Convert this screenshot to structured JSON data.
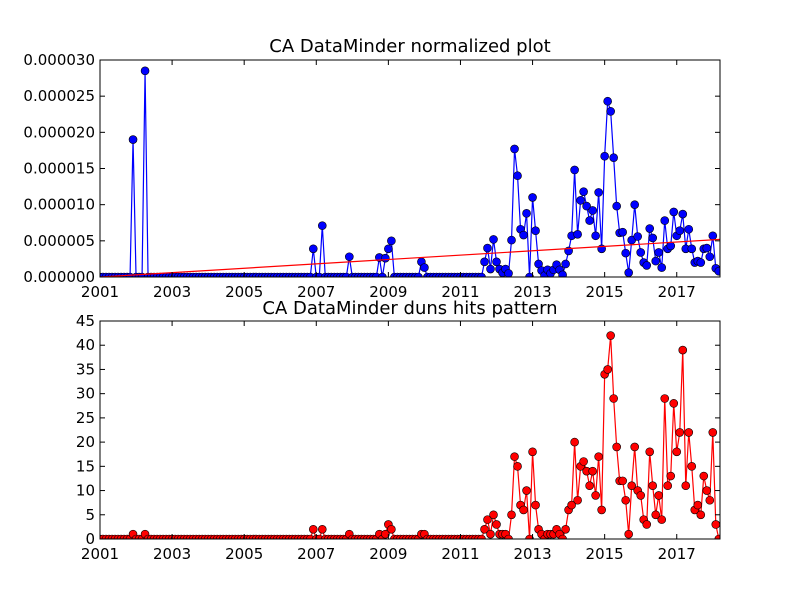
{
  "chart_data": [
    {
      "type": "line",
      "title": "CA DataMinder normalized plot",
      "xlim": [
        2001.0,
        2018.2
      ],
      "ylim": [
        0,
        3e-05
      ],
      "xticks": [
        2001,
        2003,
        2005,
        2007,
        2009,
        2011,
        2013,
        2015,
        2017
      ],
      "xtick_labels": [
        "2001",
        "2003",
        "2005",
        "2007",
        "2009",
        "2011",
        "2013",
        "2015",
        "2017"
      ],
      "yticks": [
        0,
        5e-06,
        1e-05,
        1.5e-05,
        2e-05,
        2.5e-05,
        3e-05
      ],
      "ytick_labels": [
        "0.000000",
        "0.000005",
        "0.000010",
        "0.000015",
        "0.000020",
        "0.000025",
        "0.000030"
      ],
      "grid": false,
      "series": [
        {
          "color": "#0000ff",
          "marker": "circle",
          "x_range": [
            2001.0,
            2018.2
          ],
          "interval": 0.0833,
          "baseline": 0,
          "points": [
            [
              2001.92,
              1.9e-05
            ],
            [
              2002.25,
              2.85e-05
            ],
            [
              2006.92,
              3.9e-06
            ],
            [
              2007.17,
              7.1e-06
            ],
            [
              2007.92,
              2.8e-06
            ],
            [
              2008.75,
              2.7e-06
            ],
            [
              2008.92,
              2.6e-06
            ],
            [
              2009.0,
              3.9e-06
            ],
            [
              2009.08,
              5e-06
            ],
            [
              2009.92,
              2.1e-06
            ],
            [
              2010.0,
              1.3e-06
            ],
            [
              2011.67,
              2.1e-06
            ],
            [
              2011.75,
              4e-06
            ],
            [
              2011.83,
              1.1e-06
            ],
            [
              2011.92,
              5.2e-06
            ],
            [
              2012.0,
              2.1e-06
            ],
            [
              2012.08,
              1.1e-06
            ],
            [
              2012.17,
              6e-07
            ],
            [
              2012.25,
              1.1e-06
            ],
            [
              2012.33,
              5e-07
            ],
            [
              2012.42,
              5.1e-06
            ],
            [
              2012.5,
              1.77e-05
            ],
            [
              2012.58,
              1.4e-05
            ],
            [
              2012.67,
              6.6e-06
            ],
            [
              2012.75,
              5.8e-06
            ],
            [
              2012.83,
              8.8e-06
            ],
            [
              2012.92,
              0.0
            ],
            [
              2013.0,
              1.1e-05
            ],
            [
              2013.08,
              6.4e-06
            ],
            [
              2013.17,
              1.8e-06
            ],
            [
              2013.25,
              9e-07
            ],
            [
              2013.33,
              2e-07
            ],
            [
              2013.42,
              1e-06
            ],
            [
              2013.5,
              5e-07
            ],
            [
              2013.58,
              1e-06
            ],
            [
              2013.67,
              1.7e-06
            ],
            [
              2013.75,
              1e-06
            ],
            [
              2013.83,
              3e-07
            ],
            [
              2013.92,
              1.8e-06
            ],
            [
              2014.0,
              3.6e-06
            ],
            [
              2014.08,
              5.7e-06
            ],
            [
              2014.17,
              1.48e-05
            ],
            [
              2014.25,
              5.9e-06
            ],
            [
              2014.33,
              1.06e-05
            ],
            [
              2014.42,
              1.18e-05
            ],
            [
              2014.5,
              9.8e-06
            ],
            [
              2014.58,
              7.8e-06
            ],
            [
              2014.67,
              9.2e-06
            ],
            [
              2014.75,
              5.7e-06
            ],
            [
              2014.83,
              1.17e-05
            ],
            [
              2014.92,
              3.9e-06
            ],
            [
              2015.0,
              1.67e-05
            ],
            [
              2015.08,
              2.43e-05
            ],
            [
              2015.17,
              2.29e-05
            ],
            [
              2015.25,
              1.65e-05
            ],
            [
              2015.33,
              9.8e-06
            ],
            [
              2015.42,
              6.1e-06
            ],
            [
              2015.5,
              6.2e-06
            ],
            [
              2015.58,
              3.3e-06
            ],
            [
              2015.67,
              6e-07
            ],
            [
              2015.75,
              5.1e-06
            ],
            [
              2015.83,
              1e-05
            ],
            [
              2015.92,
              5.6e-06
            ],
            [
              2016.0,
              3.4e-06
            ],
            [
              2016.08,
              2e-06
            ],
            [
              2016.17,
              1.6e-06
            ],
            [
              2016.25,
              6.7e-06
            ],
            [
              2016.33,
              5.4e-06
            ],
            [
              2016.42,
              2.2e-06
            ],
            [
              2016.5,
              3.4e-06
            ],
            [
              2016.58,
              1.3e-06
            ],
            [
              2016.67,
              7.8e-06
            ],
            [
              2016.75,
              3.9e-06
            ],
            [
              2016.83,
              4.3e-06
            ],
            [
              2016.92,
              9e-06
            ],
            [
              2017.0,
              5.7e-06
            ],
            [
              2017.08,
              6.4e-06
            ],
            [
              2017.17,
              8.7e-06
            ],
            [
              2017.25,
              3.9e-06
            ],
            [
              2017.33,
              6.6e-06
            ],
            [
              2017.42,
              3.9e-06
            ],
            [
              2017.5,
              2e-06
            ],
            [
              2017.58,
              2.2e-06
            ],
            [
              2017.67,
              2e-06
            ],
            [
              2017.75,
              3.9e-06
            ],
            [
              2017.83,
              4e-06
            ],
            [
              2017.92,
              2.8e-06
            ],
            [
              2018.0,
              5.7e-06
            ],
            [
              2018.08,
              1.2e-06
            ],
            [
              2018.17,
              8e-07
            ]
          ]
        },
        {
          "color": "#ff0000",
          "marker": "none",
          "x": [
            2001.0,
            2018.2
          ],
          "y": [
            0.0,
            5.2e-06
          ]
        }
      ]
    },
    {
      "type": "line",
      "title": "CA DataMinder duns hits pattern",
      "xlim": [
        2001.0,
        2018.2
      ],
      "ylim": [
        0,
        45
      ],
      "xticks": [
        2001,
        2003,
        2005,
        2007,
        2009,
        2011,
        2013,
        2015,
        2017
      ],
      "xtick_labels": [
        "2001",
        "2003",
        "2005",
        "2007",
        "2009",
        "2011",
        "2013",
        "2015",
        "2017"
      ],
      "yticks": [
        0,
        5,
        10,
        15,
        20,
        25,
        30,
        35,
        40,
        45
      ],
      "ytick_labels": [
        "0",
        "5",
        "10",
        "15",
        "20",
        "25",
        "30",
        "35",
        "40",
        "45"
      ],
      "grid": false,
      "series": [
        {
          "color": "#ff0000",
          "marker": "circle",
          "x_range": [
            2001.0,
            2018.2
          ],
          "interval": 0.0833,
          "baseline": 0,
          "points": [
            [
              2001.92,
              1
            ],
            [
              2002.25,
              1
            ],
            [
              2006.92,
              2
            ],
            [
              2007.17,
              2
            ],
            [
              2007.92,
              1
            ],
            [
              2008.75,
              1
            ],
            [
              2008.92,
              1
            ],
            [
              2009.0,
              3
            ],
            [
              2009.08,
              2
            ],
            [
              2009.92,
              1
            ],
            [
              2010.0,
              1
            ],
            [
              2011.67,
              2
            ],
            [
              2011.75,
              4
            ],
            [
              2011.83,
              1
            ],
            [
              2011.92,
              5
            ],
            [
              2012.0,
              3
            ],
            [
              2012.08,
              1
            ],
            [
              2012.17,
              1
            ],
            [
              2012.25,
              1
            ],
            [
              2012.33,
              0
            ],
            [
              2012.42,
              5
            ],
            [
              2012.5,
              17
            ],
            [
              2012.58,
              15
            ],
            [
              2012.67,
              7
            ],
            [
              2012.75,
              6
            ],
            [
              2012.83,
              10
            ],
            [
              2012.92,
              0
            ],
            [
              2013.0,
              18
            ],
            [
              2013.08,
              7
            ],
            [
              2013.17,
              2
            ],
            [
              2013.25,
              1
            ],
            [
              2013.33,
              0
            ],
            [
              2013.42,
              1
            ],
            [
              2013.5,
              1
            ],
            [
              2013.58,
              1
            ],
            [
              2013.67,
              2
            ],
            [
              2013.75,
              1
            ],
            [
              2013.83,
              0
            ],
            [
              2013.92,
              2
            ],
            [
              2014.0,
              6
            ],
            [
              2014.08,
              7
            ],
            [
              2014.17,
              20
            ],
            [
              2014.25,
              8
            ],
            [
              2014.33,
              15
            ],
            [
              2014.42,
              16
            ],
            [
              2014.5,
              14
            ],
            [
              2014.58,
              11
            ],
            [
              2014.67,
              14
            ],
            [
              2014.75,
              9
            ],
            [
              2014.83,
              17
            ],
            [
              2014.92,
              6
            ],
            [
              2015.0,
              34
            ],
            [
              2015.08,
              35
            ],
            [
              2015.17,
              42
            ],
            [
              2015.25,
              29
            ],
            [
              2015.33,
              19
            ],
            [
              2015.42,
              12
            ],
            [
              2015.5,
              12
            ],
            [
              2015.58,
              8
            ],
            [
              2015.67,
              1
            ],
            [
              2015.75,
              11
            ],
            [
              2015.83,
              19
            ],
            [
              2015.92,
              10
            ],
            [
              2016.0,
              9
            ],
            [
              2016.08,
              4
            ],
            [
              2016.17,
              3
            ],
            [
              2016.25,
              18
            ],
            [
              2016.33,
              11
            ],
            [
              2016.42,
              5
            ],
            [
              2016.5,
              9
            ],
            [
              2016.58,
              4
            ],
            [
              2016.67,
              29
            ],
            [
              2016.75,
              11
            ],
            [
              2016.83,
              13
            ],
            [
              2016.92,
              28
            ],
            [
              2017.0,
              18
            ],
            [
              2017.08,
              22
            ],
            [
              2017.17,
              39
            ],
            [
              2017.25,
              11
            ],
            [
              2017.33,
              22
            ],
            [
              2017.42,
              15
            ],
            [
              2017.5,
              6
            ],
            [
              2017.58,
              7
            ],
            [
              2017.67,
              5
            ],
            [
              2017.75,
              13
            ],
            [
              2017.83,
              10
            ],
            [
              2017.92,
              8
            ],
            [
              2018.0,
              22
            ],
            [
              2018.08,
              3
            ],
            [
              2018.17,
              0
            ]
          ]
        }
      ]
    }
  ]
}
